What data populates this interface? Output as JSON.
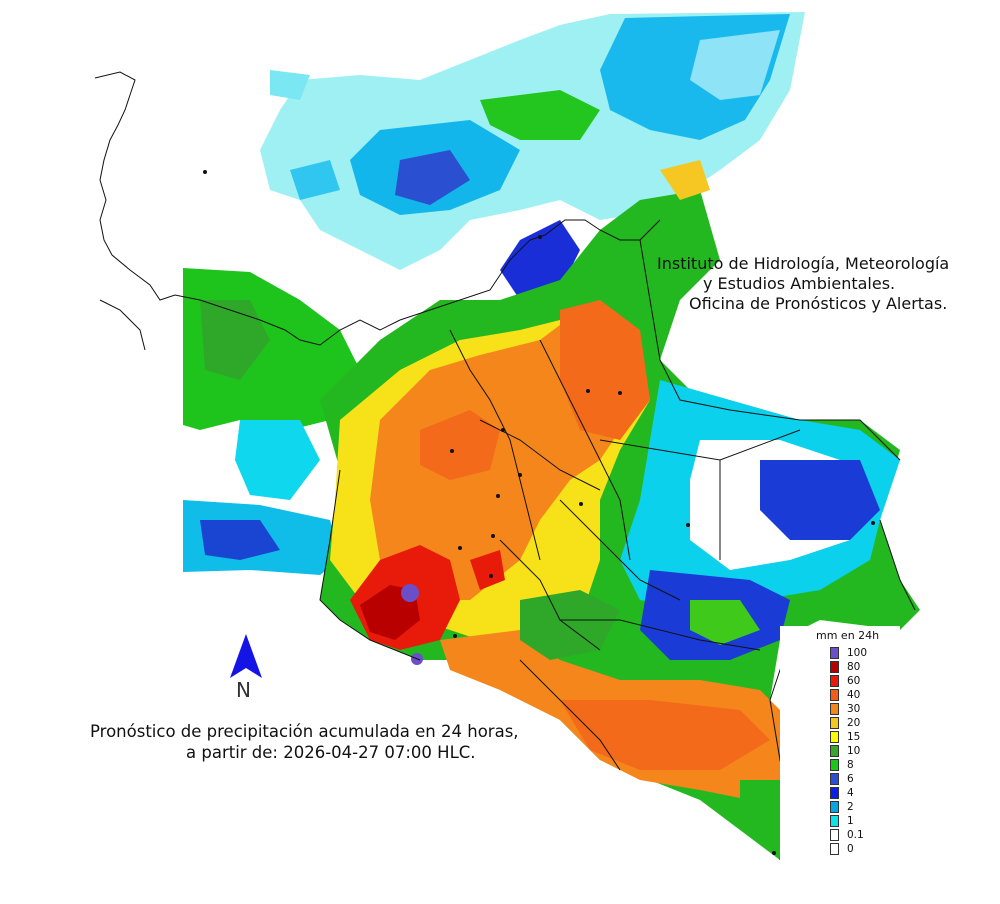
{
  "map": {
    "institution": {
      "line1": "Instituto de Hidrología, Meteorología",
      "line2": "y Estudios Ambientales.",
      "line3": "Oficina de Pronósticos y Alertas."
    },
    "caption": {
      "line1": "Pronóstico de precipitación acumulada en 24 horas,",
      "line2": "a partir de: 2026-04-27 07:00 HLC."
    },
    "north_arrow": {
      "label": "N",
      "color": "#1414e6"
    },
    "legend": {
      "title": "mm en 24h",
      "items": [
        {
          "label": "100",
          "color": "#6a4fc8"
        },
        {
          "label": "80",
          "color": "#b80000"
        },
        {
          "label": "60",
          "color": "#e81a0a"
        },
        {
          "label": "40",
          "color": "#f25c19"
        },
        {
          "label": "30",
          "color": "#f4861c"
        },
        {
          "label": "20",
          "color": "#f6c623"
        },
        {
          "label": "15",
          "color": "#fcfc05"
        },
        {
          "label": "10",
          "color": "#39a82a"
        },
        {
          "label": "8",
          "color": "#19c919"
        },
        {
          "label": "6",
          "color": "#2a4fd0"
        },
        {
          "label": "4",
          "color": "#0a1ee6"
        },
        {
          "label": "2",
          "color": "#08a5e6"
        },
        {
          "label": "1",
          "color": "#0fe0ec"
        },
        {
          "label": "0.1",
          "color": "#ffffff"
        },
        {
          "label": "0",
          "color": "#ffffff"
        }
      ]
    }
  }
}
